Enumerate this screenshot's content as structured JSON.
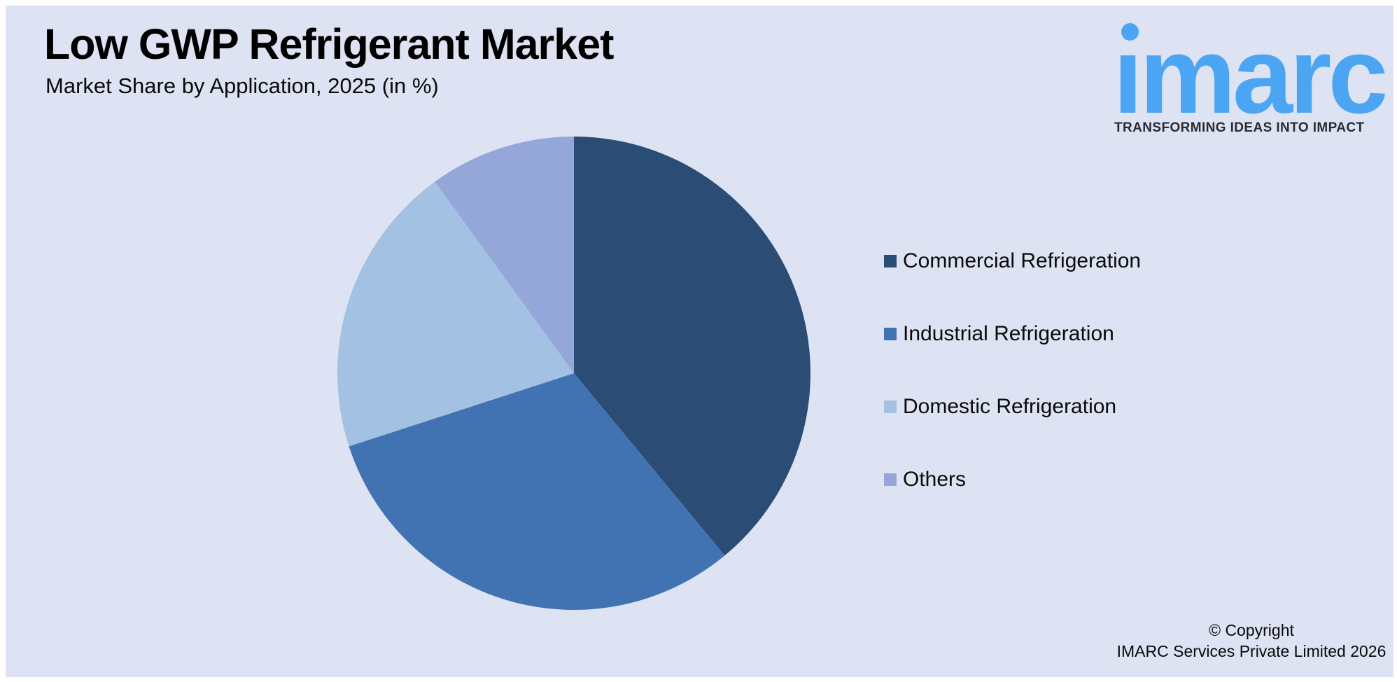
{
  "header": {
    "title": "Low GWP Refrigerant Market",
    "subtitle": "Market Share by Application, 2025 (in %)"
  },
  "logo": {
    "wordmark": "imarc",
    "tagline": "TRANSFORMING IDEAS INTO IMPACT",
    "brand_color": "#4ba5f3"
  },
  "chart_data": {
    "type": "pie",
    "title": "Low GWP Refrigerant Market",
    "subtitle": "Market Share by Application, 2025 (in %)",
    "unit": "%",
    "categories": [
      "Commercial Refrigeration",
      "Industrial Refrigeration",
      "Domestic Refrigeration",
      "Others"
    ],
    "values": [
      39,
      31,
      20,
      10
    ],
    "colors": [
      "#2b4c74",
      "#4173b3",
      "#a3c1e2",
      "#95a6d9"
    ],
    "start_angle_deg": 0,
    "direction": "clockwise",
    "legend_position": "right",
    "data_labels_shown": false
  },
  "legend": {
    "items": [
      {
        "label": "Commercial Refrigeration",
        "color": "#2b4c74"
      },
      {
        "label": "Industrial Refrigeration",
        "color": "#4173b3"
      },
      {
        "label": "Domestic Refrigeration",
        "color": "#a3c1e2"
      },
      {
        "label": "Others",
        "color": "#95a6d9"
      }
    ]
  },
  "footer": {
    "line1": "© Copyright",
    "line2": "IMARC Services Private Limited 2026"
  },
  "colors": {
    "canvas_background": "#dde3f2",
    "page_background": "#ffffff",
    "text": "#000000",
    "tagline_text": "#2b2b33"
  }
}
